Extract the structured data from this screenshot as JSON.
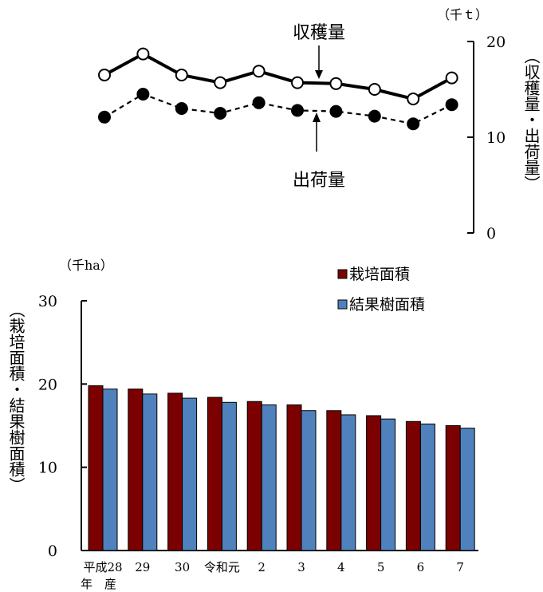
{
  "chart_data": [
    {
      "type": "line",
      "categories": [
        "平成28年産",
        "29",
        "30",
        "令和元",
        "2",
        "3",
        "4",
        "5",
        "6",
        "7"
      ],
      "unit": "（千ｔ）",
      "ylabel": "（収穫量・出荷量）",
      "ylim": [
        0,
        20
      ],
      "yticks": [
        "0",
        "10",
        "20"
      ],
      "series": [
        {
          "name": "収穫量",
          "values": [
            16.5,
            18.7,
            16.5,
            15.7,
            16.9,
            15.7,
            15.6,
            15.0,
            14.0,
            16.2
          ],
          "marker": "open-circle",
          "line": "solid"
        },
        {
          "name": "出荷量",
          "values": [
            12.1,
            14.5,
            13.0,
            12.5,
            13.6,
            12.8,
            12.7,
            12.2,
            11.4,
            13.4
          ],
          "marker": "filled-circle",
          "line": "dashed"
        }
      ]
    },
    {
      "type": "bar",
      "categories": [
        "平成28年産",
        "29",
        "30",
        "令和元",
        "2",
        "3",
        "4",
        "5",
        "6",
        "7"
      ],
      "category_labels": [
        "平成28",
        "29",
        "30",
        "令和元",
        "2",
        "3",
        "4",
        "5",
        "6",
        "7"
      ],
      "category_sublabel": "年　産",
      "unit": "（千ha）",
      "ylabel": "（栽培面積・結果樹面積）",
      "ylim": [
        0,
        30
      ],
      "yticks": [
        "0",
        "10",
        "20",
        "30"
      ],
      "legend": "top-right",
      "series": [
        {
          "name": "栽培面積",
          "color": "#7b0000",
          "values": [
            19.8,
            19.4,
            18.9,
            18.4,
            17.9,
            17.5,
            16.8,
            16.2,
            15.5,
            15.0
          ]
        },
        {
          "name": "結果樹面積",
          "color": "#4f81bd",
          "values": [
            19.4,
            18.8,
            18.3,
            17.8,
            17.5,
            16.8,
            16.3,
            15.8,
            15.2,
            14.7
          ]
        }
      ]
    }
  ]
}
